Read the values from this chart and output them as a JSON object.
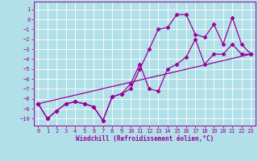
{
  "background_color": "#b2e0e8",
  "grid_color": "#ffffff",
  "line_color": "#990099",
  "marker": "D",
  "markersize": 2.5,
  "linewidth": 0.9,
  "xlabel": "Windchill (Refroidissement éolien,°C)",
  "xlabel_fontsize": 5.5,
  "tick_fontsize": 5.0,
  "xlim": [
    -0.5,
    23.5
  ],
  "ylim": [
    -10.7,
    1.8
  ],
  "yticks": [
    1,
    0,
    -1,
    -2,
    -3,
    -4,
    -5,
    -6,
    -7,
    -8,
    -9,
    -10
  ],
  "xticks": [
    0,
    1,
    2,
    3,
    4,
    5,
    6,
    7,
    8,
    9,
    10,
    11,
    12,
    13,
    14,
    15,
    16,
    17,
    18,
    19,
    20,
    21,
    22,
    23
  ],
  "series": [
    {
      "x": [
        0,
        1,
        2,
        3,
        4,
        5,
        6,
        7,
        8,
        9,
        10,
        11,
        12,
        13,
        14,
        15,
        16,
        17,
        18,
        19,
        20,
        21,
        22,
        23
      ],
      "y": [
        -8.5,
        -10.0,
        -9.2,
        -8.5,
        -8.3,
        -8.5,
        -8.8,
        -10.2,
        -7.8,
        -7.5,
        -7.0,
        -5.0,
        -3.0,
        -1.0,
        -0.8,
        0.5,
        0.5,
        -1.5,
        -1.8,
        -0.5,
        -2.5,
        0.2,
        -2.5,
        -3.5
      ],
      "markers": true
    },
    {
      "x": [
        0,
        1,
        2,
        3,
        4,
        5,
        6,
        7,
        8,
        9,
        10,
        11,
        12,
        13,
        14,
        15,
        16,
        17,
        18,
        19,
        20,
        21,
        22,
        23
      ],
      "y": [
        -8.5,
        -10.0,
        -9.2,
        -8.5,
        -8.3,
        -8.5,
        -8.8,
        -10.2,
        -7.8,
        -7.5,
        -6.5,
        -4.5,
        -7.0,
        -7.2,
        -5.0,
        -4.5,
        -3.8,
        -2.0,
        -4.5,
        -3.5,
        -3.5,
        -2.5,
        -3.5,
        -3.5
      ],
      "markers": true
    },
    {
      "x": [
        0,
        23
      ],
      "y": [
        -8.5,
        -3.5
      ],
      "markers": false
    }
  ]
}
